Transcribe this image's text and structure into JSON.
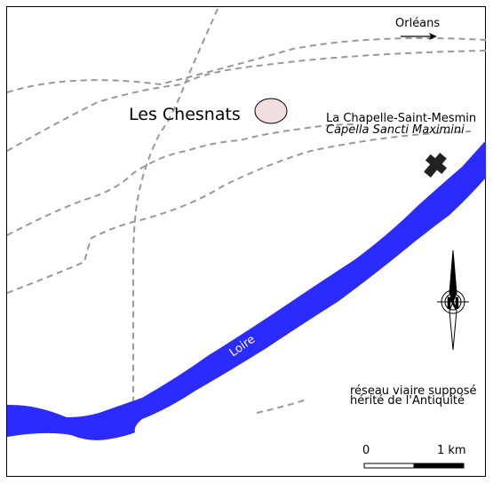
{
  "places": {
    "hamlet": "Les Chesnats",
    "chapel": "La Chapelle-Saint-Mesmin",
    "chapel_latin": "Capella Sancti Maximini",
    "direction": "Orléans"
  },
  "river": {
    "name": "Loire",
    "color": "#2b2bff"
  },
  "legend": {
    "line1": "réseau viaire supposé",
    "line2": "hérité de l'Antiquité"
  },
  "scale": {
    "start": "0",
    "end": "1 km"
  },
  "compass": {
    "letter": "N"
  },
  "colors": {
    "road": "#999999",
    "site": "#f2dede"
  },
  "icons": {
    "church": "cross-icon",
    "north": "compass-rose-icon",
    "direction": "arrow-right-icon"
  }
}
